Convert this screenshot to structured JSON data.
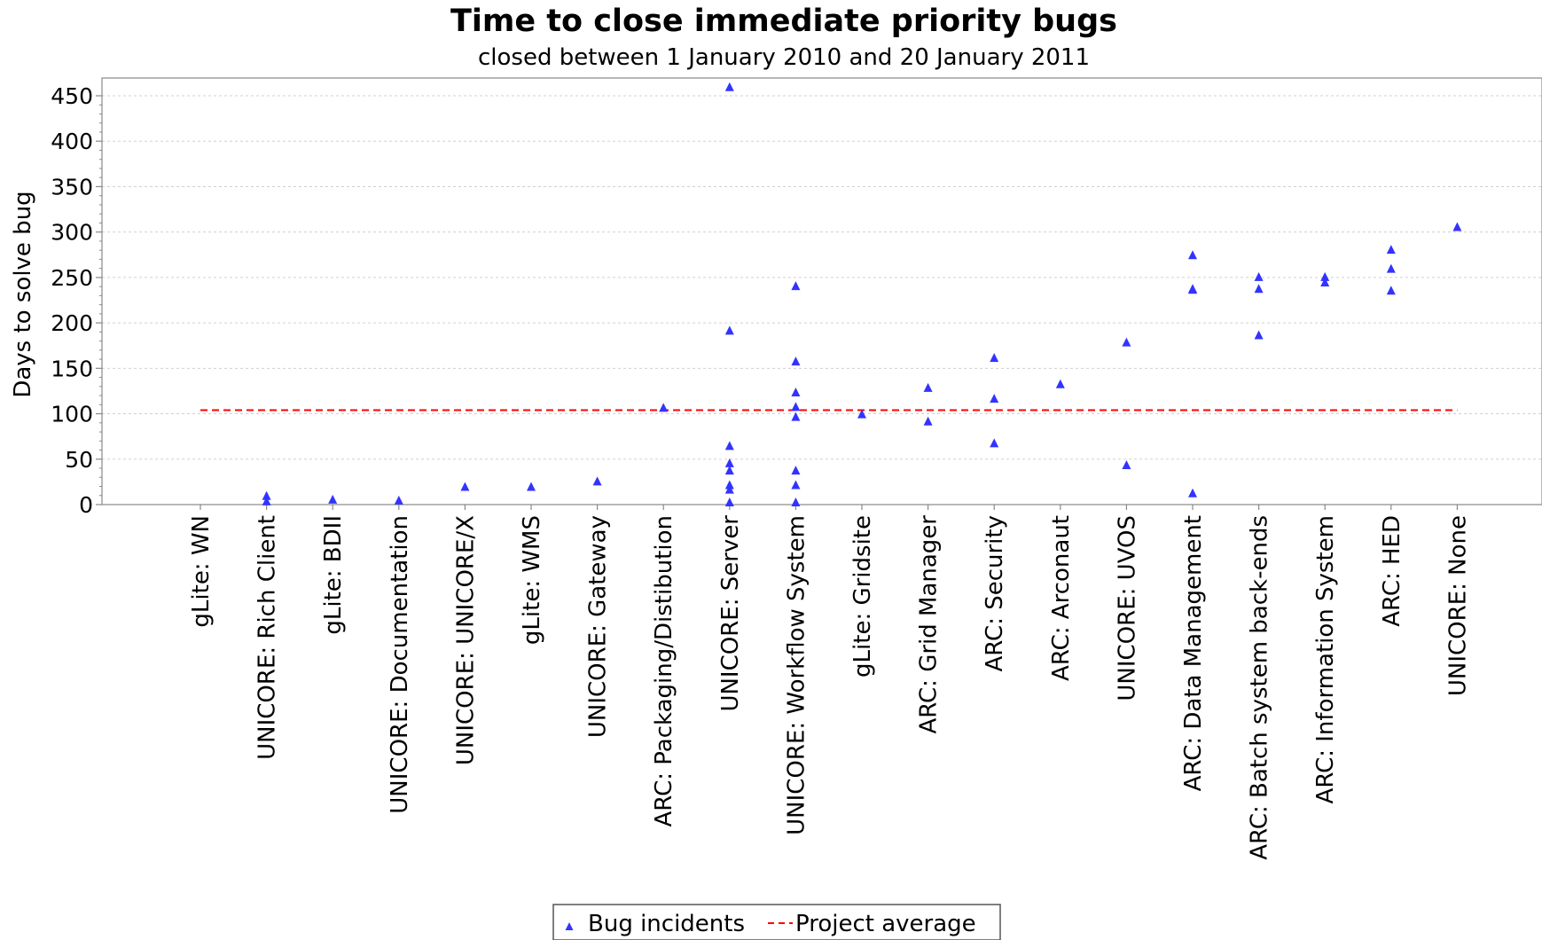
{
  "chart_data": {
    "type": "scatter",
    "title": "Time to close immediate priority bugs",
    "subtitle": "closed between 1 January 2010 and 20 January 2011",
    "xlabel": "",
    "ylabel": "Days to solve bug",
    "ylim": [
      0,
      460
    ],
    "yticks": [
      0,
      50,
      100,
      150,
      200,
      250,
      300,
      350,
      400,
      450
    ],
    "grid": true,
    "legend_position": "bottom",
    "categories": [
      "gLite: WN",
      "UNICORE: Rich Client",
      "gLite: BDII",
      "UNICORE: Documentation",
      "UNICORE: UNICORE/X",
      "gLite: WMS",
      "UNICORE: Gateway",
      "ARC: Packaging/Distibution",
      "UNICORE: Server",
      "UNICORE: Workflow System",
      "gLite: Gridsite",
      "ARC: Grid Manager",
      "ARC: Security",
      "ARC: Arconaut",
      "UNICORE: UVOS",
      "ARC: Data Management",
      "ARC: Batch system back-ends",
      "ARC: Information System",
      "ARC: HED",
      "UNICORE: None"
    ],
    "series": [
      {
        "name": "Bug incidents",
        "marker": "triangle",
        "color": "#3333ff",
        "values": [
          [],
          [
            9,
            3
          ],
          [
            5
          ],
          [
            4
          ],
          [
            19
          ],
          [
            19
          ],
          [
            25
          ],
          [
            106
          ],
          [
            459,
            191,
            64,
            45,
            37,
            21,
            16,
            2
          ],
          [
            240,
            157,
            123,
            107,
            96,
            37,
            21,
            2
          ],
          [
            99
          ],
          [
            128,
            91
          ],
          [
            161,
            116,
            67
          ],
          [
            132
          ],
          [
            178,
            43
          ],
          [
            274,
            237,
            236,
            12
          ],
          [
            250,
            237,
            186
          ],
          [
            250,
            244
          ],
          [
            280,
            259,
            235
          ],
          [
            305
          ]
        ]
      },
      {
        "name": "Project average",
        "style": "dashed",
        "color": "#ff0000",
        "value": 104
      }
    ]
  }
}
